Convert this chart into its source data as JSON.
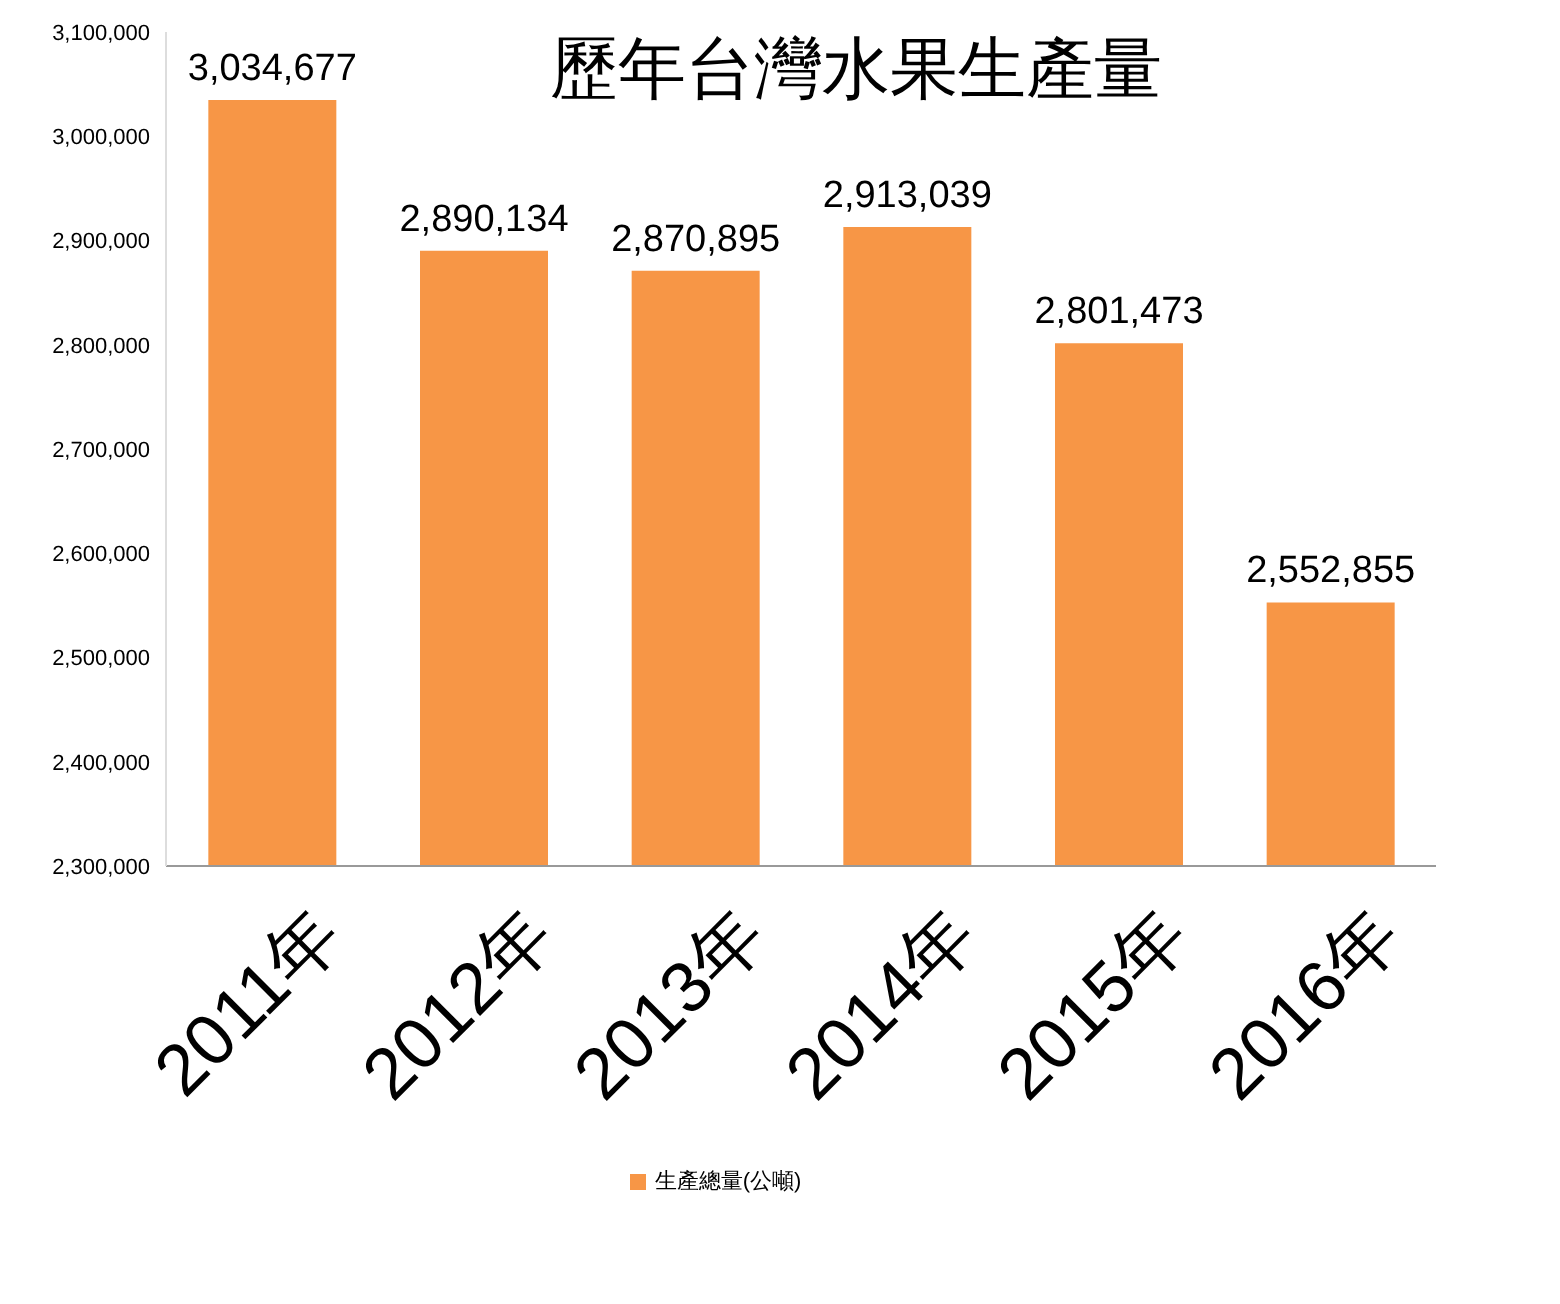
{
  "chart_data": {
    "type": "bar",
    "title": "歷年台灣水果生產量",
    "categories": [
      "2011年",
      "2012年",
      "2013年",
      "2014年",
      "2015年",
      "2016年"
    ],
    "series": [
      {
        "name": "生產總量(公噸)",
        "color": "#f79646",
        "values": [
          3034677,
          2890134,
          2870895,
          2913039,
          2801473,
          2552855
        ],
        "value_labels": [
          "3,034,677",
          "2,890,134",
          "2,870,895",
          "2,913,039",
          "2,801,473",
          "2,552,855"
        ]
      }
    ],
    "ylim": [
      2300000,
      3100000
    ],
    "yticks": [
      {
        "value": 2300000,
        "label": "2,300,000"
      },
      {
        "value": 2400000,
        "label": "2,400,000"
      },
      {
        "value": 2500000,
        "label": "2,500,000"
      },
      {
        "value": 2600000,
        "label": "2,600,000"
      },
      {
        "value": 2700000,
        "label": "2,700,000"
      },
      {
        "value": 2800000,
        "label": "2,800,000"
      },
      {
        "value": 2900000,
        "label": "2,900,000"
      },
      {
        "value": 3000000,
        "label": "3,000,000"
      },
      {
        "value": 3100000,
        "label": "3,100,000"
      }
    ],
    "grid": false,
    "legend": "bottom"
  }
}
